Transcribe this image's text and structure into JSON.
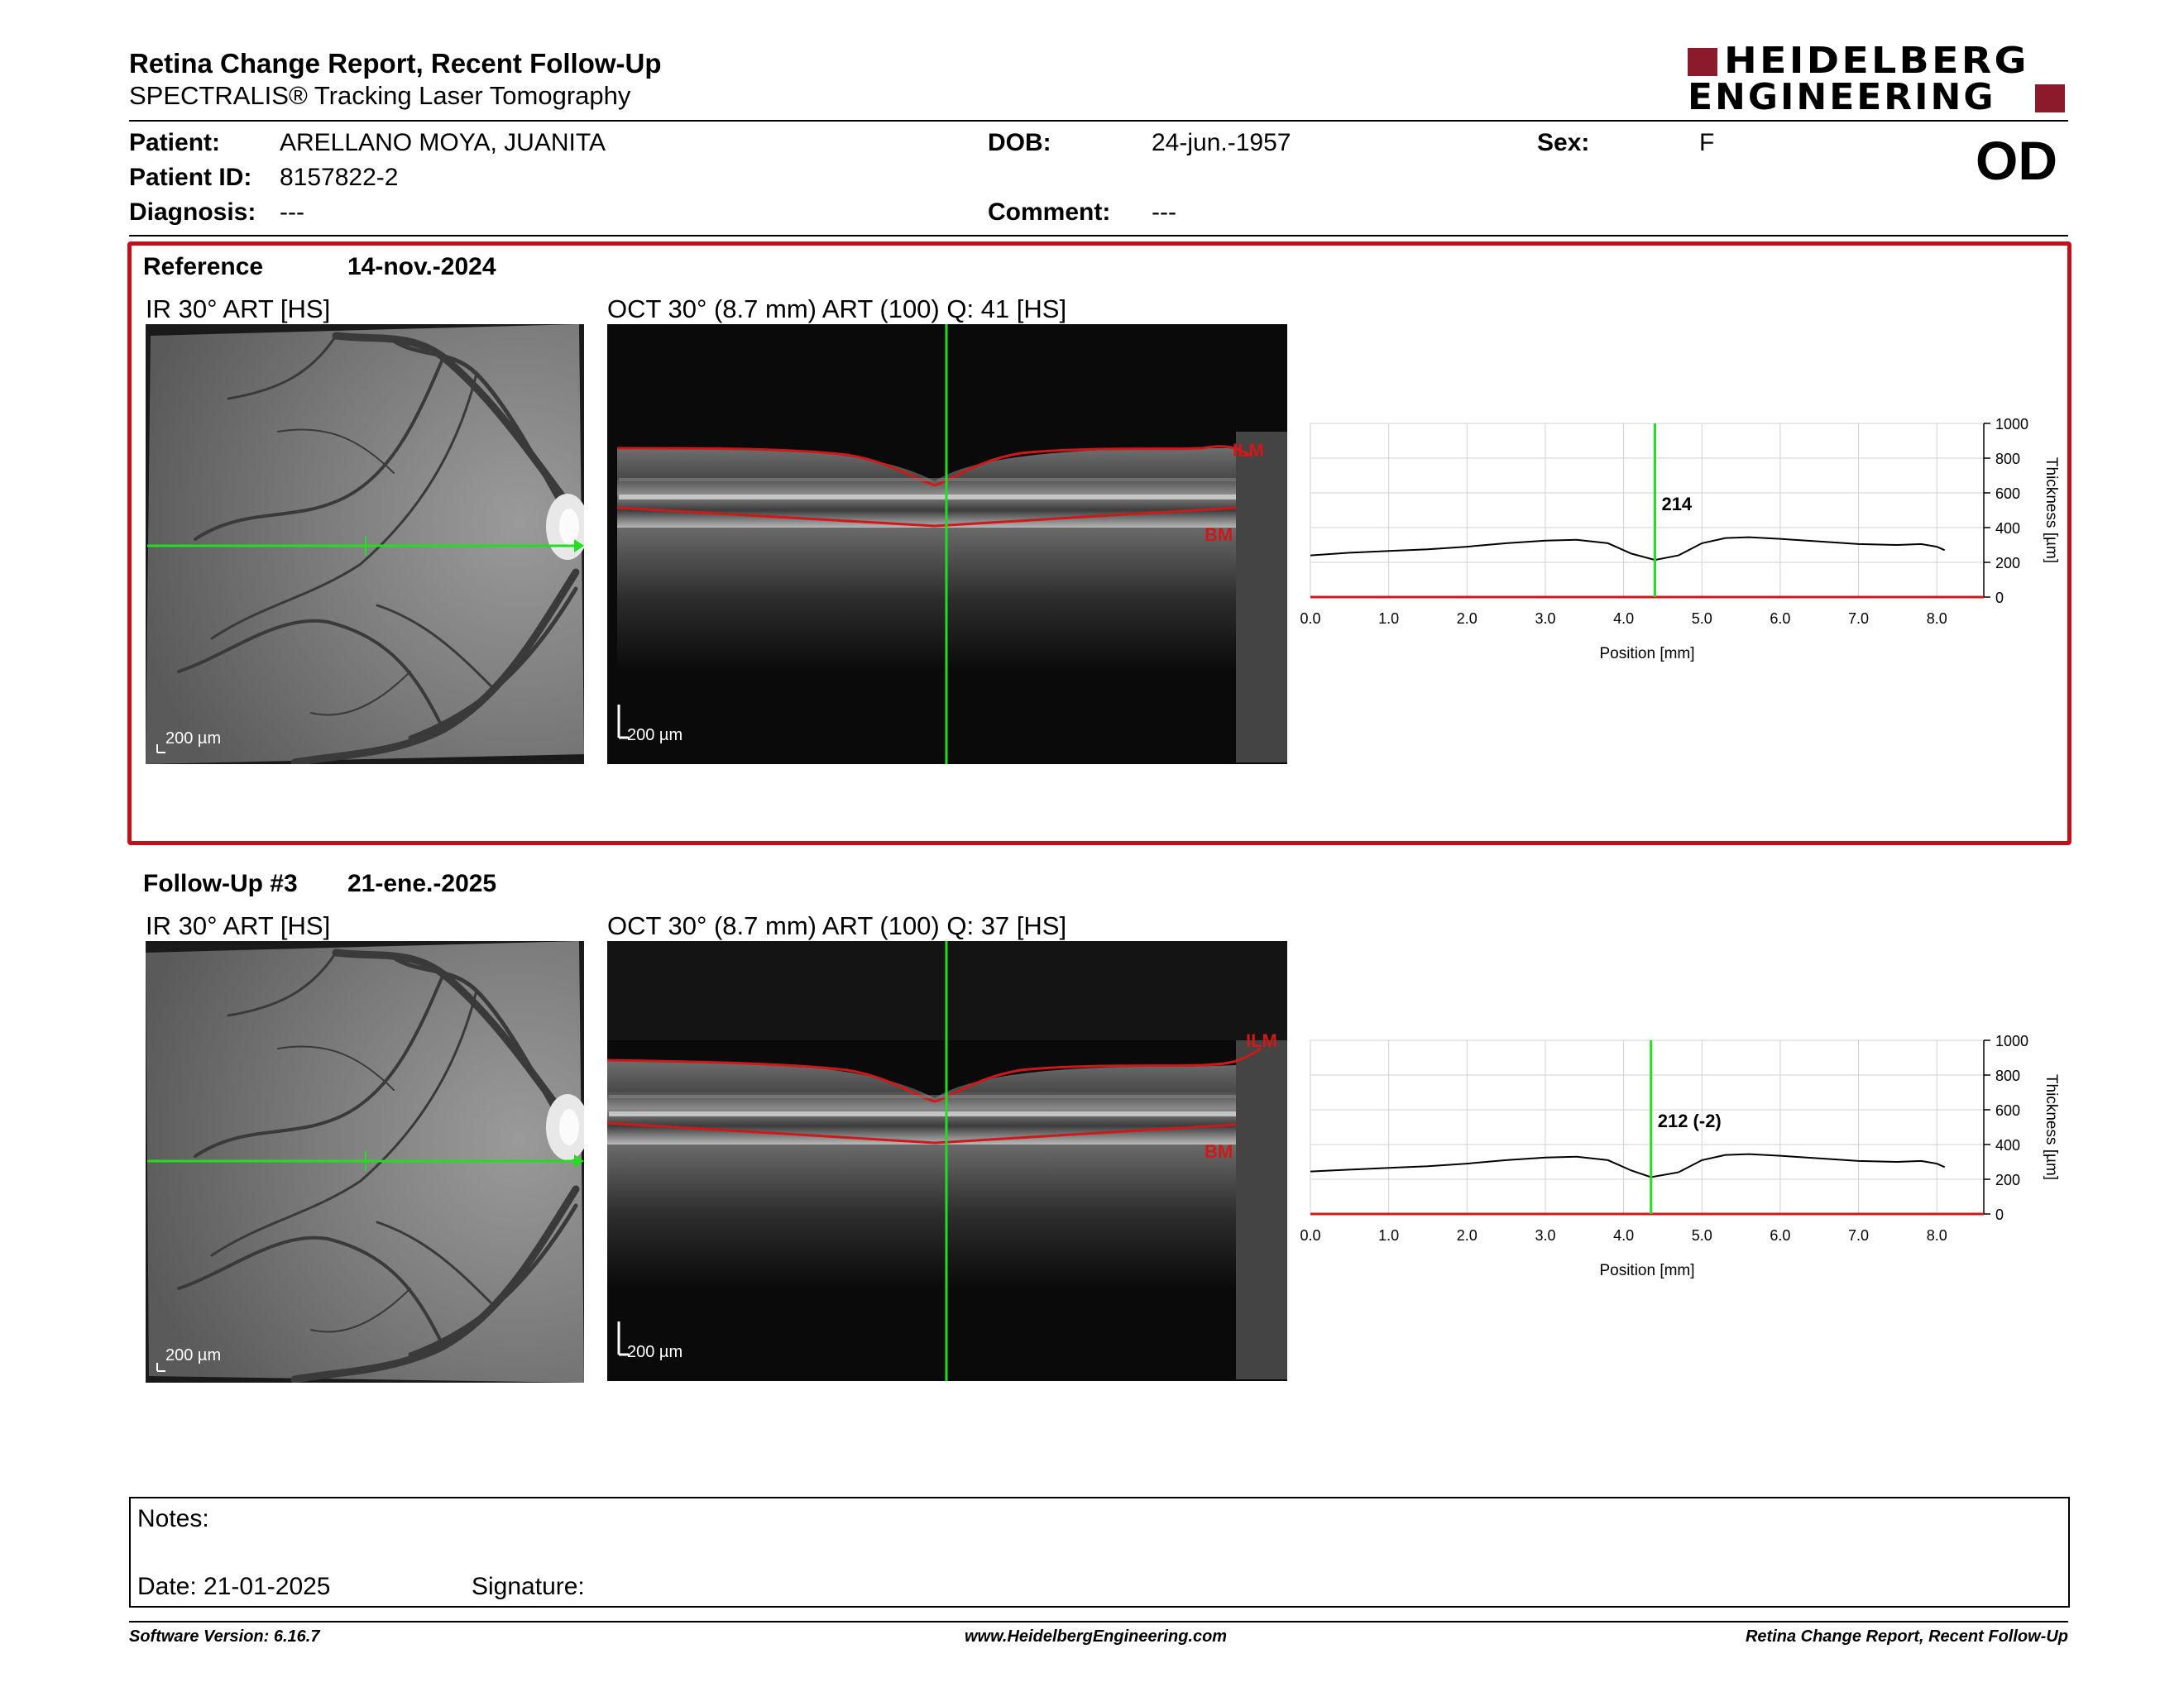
{
  "header": {
    "title": "Retina Change Report, Recent Follow-Up",
    "subtitle": "SPECTRALIS® Tracking Laser Tomography",
    "brand_line1": "HEIDELBERG",
    "brand_line2": "ENGINEERING",
    "eye": "OD"
  },
  "patient": {
    "patient_label": "Patient:",
    "patient_value": "ARELLANO MOYA, JUANITA",
    "id_label": "Patient ID:",
    "id_value": "8157822-2",
    "diagnosis_label": "Diagnosis:",
    "diagnosis_value": "---",
    "dob_label": "DOB:",
    "dob_value": "24-jun.-1957",
    "comment_label": "Comment:",
    "comment_value": "---",
    "sex_label": "Sex:",
    "sex_value": "F"
  },
  "reference": {
    "label": "Reference",
    "date": "14-nov.-2024",
    "ir_caption": "IR 30° ART [HS]",
    "oct_caption": "OCT 30° (8.7 mm) ART (100) Q: 41 [HS]",
    "ir_scale": "200 µm",
    "oct_scale": "200 µm",
    "ilm": "ILM",
    "bm": "BM"
  },
  "followup": {
    "label": "Follow-Up #3",
    "date": "21-ene.-2025",
    "ir_caption": "IR 30° ART [HS]",
    "oct_caption": "OCT 30° (8.7 mm) ART (100) Q: 37 [HS]",
    "ir_scale": "200 µm",
    "oct_scale": "200 µm",
    "ilm": "ILM",
    "bm": "BM"
  },
  "chart_data": [
    {
      "type": "line",
      "xlabel": "Position [mm]",
      "ylabel": "Thickness [µm]",
      "xlim": [
        0,
        8.6
      ],
      "ylim": [
        0,
        1000
      ],
      "x_ticks": [
        "0.0",
        "1.0",
        "2.0",
        "3.0",
        "4.0",
        "5.0",
        "6.0",
        "7.0",
        "8.0"
      ],
      "y_ticks": [
        "0",
        "200",
        "400",
        "600",
        "800",
        "1000"
      ],
      "cursor_x": 4.4,
      "cursor_label": "214",
      "x": [
        0.0,
        0.5,
        1.0,
        1.5,
        2.0,
        2.5,
        3.0,
        3.4,
        3.8,
        4.1,
        4.4,
        4.7,
        5.0,
        5.3,
        5.6,
        6.0,
        6.5,
        7.0,
        7.5,
        7.8,
        8.0,
        8.1
      ],
      "y": [
        240,
        255,
        265,
        275,
        290,
        310,
        325,
        330,
        310,
        250,
        214,
        240,
        310,
        340,
        345,
        335,
        320,
        305,
        300,
        305,
        290,
        270
      ]
    },
    {
      "type": "line",
      "xlabel": "Position [mm]",
      "ylabel": "Thickness [µm]",
      "xlim": [
        0,
        8.6
      ],
      "ylim": [
        0,
        1000
      ],
      "x_ticks": [
        "0.0",
        "1.0",
        "2.0",
        "3.0",
        "4.0",
        "5.0",
        "6.0",
        "7.0",
        "8.0"
      ],
      "y_ticks": [
        "0",
        "200",
        "400",
        "600",
        "800",
        "1000"
      ],
      "cursor_x": 4.35,
      "cursor_label": "212 (-2)",
      "x": [
        0.0,
        0.5,
        1.0,
        1.5,
        2.0,
        2.5,
        3.0,
        3.4,
        3.8,
        4.1,
        4.35,
        4.7,
        5.0,
        5.3,
        5.6,
        6.0,
        6.5,
        7.0,
        7.5,
        7.8,
        8.0,
        8.1
      ],
      "y": [
        245,
        255,
        265,
        275,
        290,
        310,
        325,
        330,
        310,
        250,
        212,
        240,
        310,
        340,
        345,
        335,
        320,
        305,
        300,
        305,
        290,
        270
      ]
    }
  ],
  "notes": {
    "notes_label": "Notes:",
    "date_label": "Date: 21-01-2025",
    "signature_label": "Signature:"
  },
  "footer": {
    "software": "Software Version: 6.16.7",
    "website": "www.HeidelbergEngineering.com",
    "report": "Retina Change Report, Recent Follow-Up"
  },
  "colors": {
    "frame_red": "#c0101a",
    "brand_red": "#8b1a2a",
    "scan_green": "#22dd22",
    "seg_red": "#d01818"
  }
}
